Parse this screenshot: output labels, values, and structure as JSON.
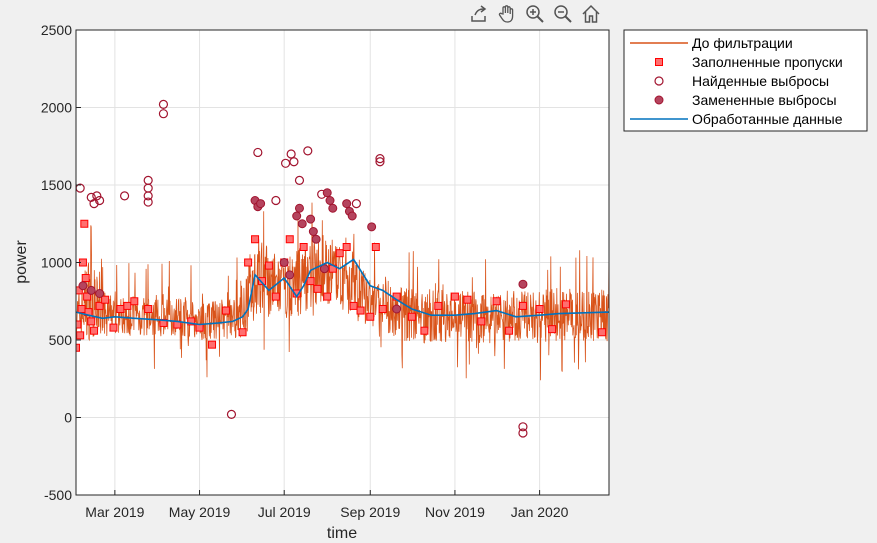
{
  "toolbar": {
    "items": [
      {
        "name": "export-icon"
      },
      {
        "name": "pan-icon"
      },
      {
        "name": "zoom-in-icon"
      },
      {
        "name": "zoom-out-icon"
      },
      {
        "name": "home-icon"
      }
    ]
  },
  "chart_data": {
    "type": "line",
    "xlabel": "time",
    "ylabel": "power",
    "xlim": [
      "2019-02-01",
      "2020-02-20"
    ],
    "ylim": [
      -500,
      2500
    ],
    "yticks": [
      -500,
      0,
      500,
      1000,
      1500,
      2000,
      2500
    ],
    "yticklabels": [
      "-500",
      "0",
      "500",
      "1000",
      "1500",
      "2000",
      "2500"
    ],
    "xticks": [
      "2019-03-01",
      "2019-05-01",
      "2019-07-01",
      "2019-09-01",
      "2019-11-01",
      "2020-01-01"
    ],
    "xticklabels": [
      "Mar 2019",
      "May 2019",
      "Jul 2019",
      "Sep 2019",
      "Nov 2019",
      "Jan 2020"
    ],
    "grid": true,
    "legend_position": "outside-top-right",
    "colors": {
      "raw": "#d95319",
      "filled": "#ff0000",
      "outlier_edge": "#a2142f",
      "replaced": "#a2142f",
      "processed": "#0072bd"
    },
    "series": [
      {
        "name": "До фильтрации",
        "kind": "line",
        "noisy": true,
        "envelope_x": [
          "2019-02-01",
          "2019-02-10",
          "2019-02-20",
          "2019-03-01",
          "2019-03-15",
          "2019-04-01",
          "2019-04-15",
          "2019-05-01",
          "2019-05-15",
          "2019-06-01",
          "2019-06-10",
          "2019-06-20",
          "2019-07-01",
          "2019-07-10",
          "2019-07-20",
          "2019-08-01",
          "2019-08-10",
          "2019-08-20",
          "2019-09-01",
          "2019-09-10",
          "2019-09-20",
          "2019-10-01",
          "2019-10-15",
          "2019-11-01",
          "2019-11-15",
          "2019-12-01",
          "2019-12-15",
          "2020-01-01",
          "2020-01-15",
          "2020-02-20"
        ],
        "envelope_low": [
          470,
          500,
          520,
          540,
          520,
          520,
          530,
          500,
          500,
          510,
          620,
          650,
          640,
          650,
          700,
          720,
          700,
          640,
          560,
          520,
          520,
          470,
          480,
          490,
          480,
          480,
          490,
          480,
          490,
          490
        ],
        "envelope_high": [
          780,
          1050,
          820,
          780,
          790,
          760,
          780,
          740,
          760,
          800,
          1200,
          1100,
          1000,
          1100,
          1150,
          1200,
          1100,
          1080,
          900,
          900,
          860,
          840,
          830,
          830,
          820,
          820,
          820,
          830,
          830,
          830
        ]
      },
      {
        "name": "Заполненные пропуски",
        "kind": "markers-square",
        "x": [
          "2019-02-01",
          "2019-02-02",
          "2019-02-03",
          "2019-02-04",
          "2019-02-05",
          "2019-02-06",
          "2019-02-07",
          "2019-02-08",
          "2019-02-09",
          "2019-02-10",
          "2019-02-12",
          "2019-02-14",
          "2019-02-18",
          "2019-02-22",
          "2019-02-28",
          "2019-03-05",
          "2019-03-10",
          "2019-03-15",
          "2019-03-25",
          "2019-04-05",
          "2019-04-15",
          "2019-04-25",
          "2019-05-01",
          "2019-05-10",
          "2019-05-20",
          "2019-06-01",
          "2019-06-05",
          "2019-06-10",
          "2019-06-15",
          "2019-06-20",
          "2019-06-25",
          "2019-07-01",
          "2019-07-05",
          "2019-07-10",
          "2019-07-15",
          "2019-07-20",
          "2019-07-25",
          "2019-08-01",
          "2019-08-05",
          "2019-08-10",
          "2019-08-15",
          "2019-08-20",
          "2019-08-25",
          "2019-09-01",
          "2019-09-05",
          "2019-09-10",
          "2019-09-20",
          "2019-10-01",
          "2019-10-10",
          "2019-10-20",
          "2019-11-01",
          "2019-11-10",
          "2019-11-20",
          "2019-12-01",
          "2019-12-10",
          "2019-12-20",
          "2020-01-01",
          "2020-01-10",
          "2020-01-20",
          "2020-02-15"
        ],
        "y": [
          450,
          600,
          820,
          530,
          700,
          1000,
          1250,
          900,
          780,
          680,
          620,
          560,
          720,
          760,
          580,
          700,
          720,
          750,
          700,
          610,
          600,
          620,
          580,
          470,
          690,
          550,
          1000,
          1150,
          880,
          980,
          780,
          1000,
          1150,
          800,
          1100,
          880,
          830,
          780,
          960,
          1060,
          1100,
          720,
          690,
          650,
          1100,
          700,
          780,
          650,
          560,
          720,
          780,
          760,
          620,
          750,
          560,
          720,
          700,
          570,
          730,
          550
        ]
      },
      {
        "name": "Найденные выбросы",
        "kind": "markers-circle-open",
        "x": [
          "2019-02-04",
          "2019-02-12",
          "2019-02-14",
          "2019-02-16",
          "2019-02-18",
          "2019-03-08",
          "2019-03-25",
          "2019-03-25",
          "2019-03-25",
          "2019-03-25",
          "2019-04-05",
          "2019-04-05",
          "2019-05-24",
          "2019-06-12",
          "2019-06-25",
          "2019-07-02",
          "2019-07-06",
          "2019-07-08",
          "2019-07-12",
          "2019-07-18",
          "2019-07-28",
          "2019-08-22",
          "2019-09-08",
          "2019-09-08",
          "2019-12-20",
          "2019-12-20"
        ],
        "y": [
          1480,
          1420,
          1380,
          1430,
          1400,
          1430,
          1530,
          1480,
          1430,
          1390,
          2020,
          1960,
          20,
          1710,
          1400,
          1640,
          1700,
          1650,
          1530,
          1720,
          1440,
          1380,
          1670,
          1650,
          -60,
          -100
        ]
      },
      {
        "name": "Замененные выбросы",
        "kind": "markers-circle-filled",
        "x": [
          "2019-02-06",
          "2019-02-12",
          "2019-02-18",
          "2019-06-10",
          "2019-06-12",
          "2019-06-14",
          "2019-07-01",
          "2019-07-05",
          "2019-07-10",
          "2019-07-12",
          "2019-07-14",
          "2019-07-20",
          "2019-07-22",
          "2019-07-24",
          "2019-07-30",
          "2019-08-01",
          "2019-08-03",
          "2019-08-05",
          "2019-08-15",
          "2019-08-17",
          "2019-08-19",
          "2019-09-02",
          "2019-09-20",
          "2019-12-20"
        ],
        "y": [
          850,
          820,
          800,
          1400,
          1360,
          1380,
          1000,
          920,
          1300,
          1350,
          1250,
          1280,
          1200,
          1150,
          960,
          1450,
          1400,
          1350,
          1380,
          1330,
          1300,
          1230,
          700,
          860
        ]
      },
      {
        "name": "Обработанные данные",
        "kind": "line",
        "x": [
          "2019-02-01",
          "2019-02-10",
          "2019-02-20",
          "2019-03-01",
          "2019-03-15",
          "2019-04-01",
          "2019-04-15",
          "2019-05-01",
          "2019-05-15",
          "2019-05-25",
          "2019-06-01",
          "2019-06-05",
          "2019-06-10",
          "2019-06-20",
          "2019-07-01",
          "2019-07-10",
          "2019-07-15",
          "2019-07-20",
          "2019-08-01",
          "2019-08-10",
          "2019-08-20",
          "2019-09-01",
          "2019-09-10",
          "2019-09-20",
          "2019-10-01",
          "2019-10-15",
          "2019-11-01",
          "2019-11-15",
          "2019-12-01",
          "2019-12-15",
          "2020-01-01",
          "2020-01-15",
          "2020-02-20"
        ],
        "y": [
          680,
          660,
          640,
          650,
          640,
          630,
          620,
          600,
          610,
          620,
          650,
          700,
          920,
          820,
          900,
          780,
          850,
          950,
          1000,
          960,
          1020,
          850,
          820,
          760,
          700,
          660,
          660,
          670,
          690,
          650,
          660,
          670,
          680
        ]
      }
    ]
  }
}
